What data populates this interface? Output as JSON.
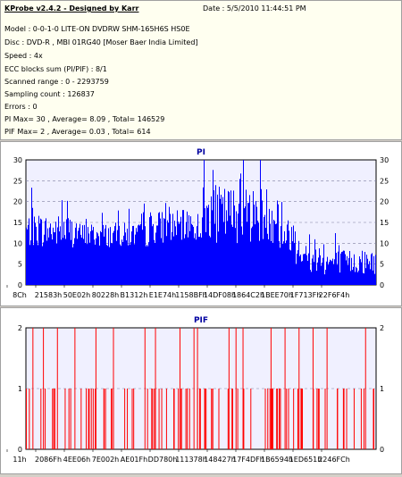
{
  "header": {
    "app_title": "KProbe v2.4.2 - Designed by Karr",
    "date_line": "Date : 5/5/2010 11:44:51 PM",
    "lines": [
      "Model : 0-0-1-0 LITE-ON DVDRW SHM-165H6S HS0E",
      "Disc : DVD-R , MBI 01RG40 [Moser Baer India Limited]",
      "Speed : 4x",
      "ECC blocks sum (PI/PIF) : 8/1",
      "Scanned range : 0 - 2293759",
      "Sampling count : 126837",
      "Errors : 0",
      "PI Max= 30 , Average= 8.09 , Total= 146529",
      "PIF Max= 2 , Average= 0.03 , Total= 614"
    ]
  },
  "chart_data": [
    {
      "type": "bar",
      "title": "PI",
      "ylim": [
        0,
        30
      ],
      "y_ticks": [
        "0",
        "5",
        "10",
        "15",
        "20",
        "25",
        "30"
      ],
      "x_tick_labels": [
        "8Ch",
        "21583h",
        "50E02h",
        "80228h",
        "B1312h",
        "E1E74h",
        "1158BFh",
        "14DF08h",
        "1864C2h",
        "1BEE70h",
        "1F713Fh",
        "22F6F4h"
      ],
      "grid": true,
      "color": "#0000ff",
      "segments": [
        {
          "from": 0.0,
          "to": 0.15,
          "level": 13,
          "spread": 4
        },
        {
          "from": 0.15,
          "to": 0.35,
          "level": 12,
          "spread": 3
        },
        {
          "from": 0.35,
          "to": 0.5,
          "level": 14,
          "spread": 4
        },
        {
          "from": 0.5,
          "to": 0.72,
          "level": 17,
          "spread": 7
        },
        {
          "from": 0.72,
          "to": 0.77,
          "level": 12,
          "spread": 4
        },
        {
          "from": 0.77,
          "to": 0.8,
          "level": 8,
          "spread": 3
        },
        {
          "from": 0.8,
          "to": 1.0,
          "level": 5.5,
          "spread": 3
        }
      ],
      "max": 30,
      "max_position": 0.62
    },
    {
      "type": "bar",
      "title": "PIF",
      "ylim": [
        0,
        2
      ],
      "y_ticks": [
        "0",
        "1",
        "2"
      ],
      "x_tick_labels": [
        "11h",
        "2086Fh",
        "4EE06h",
        "7E002h",
        "AE01Fh",
        "DD780h",
        "111378h",
        "148427h",
        "17F4DFh",
        "1B6594h",
        "1ED651h",
        "2246FCh"
      ],
      "grid": true,
      "color": "#ff0000",
      "max": 2,
      "spike_count_level1": 95,
      "spike_positions_level2": [
        0.02,
        0.05,
        0.09,
        0.14,
        0.2,
        0.25,
        0.34,
        0.37,
        0.44,
        0.48,
        0.49,
        0.58,
        0.6,
        0.62,
        0.7,
        0.74,
        0.78,
        0.82,
        0.86,
        0.97
      ]
    }
  ]
}
